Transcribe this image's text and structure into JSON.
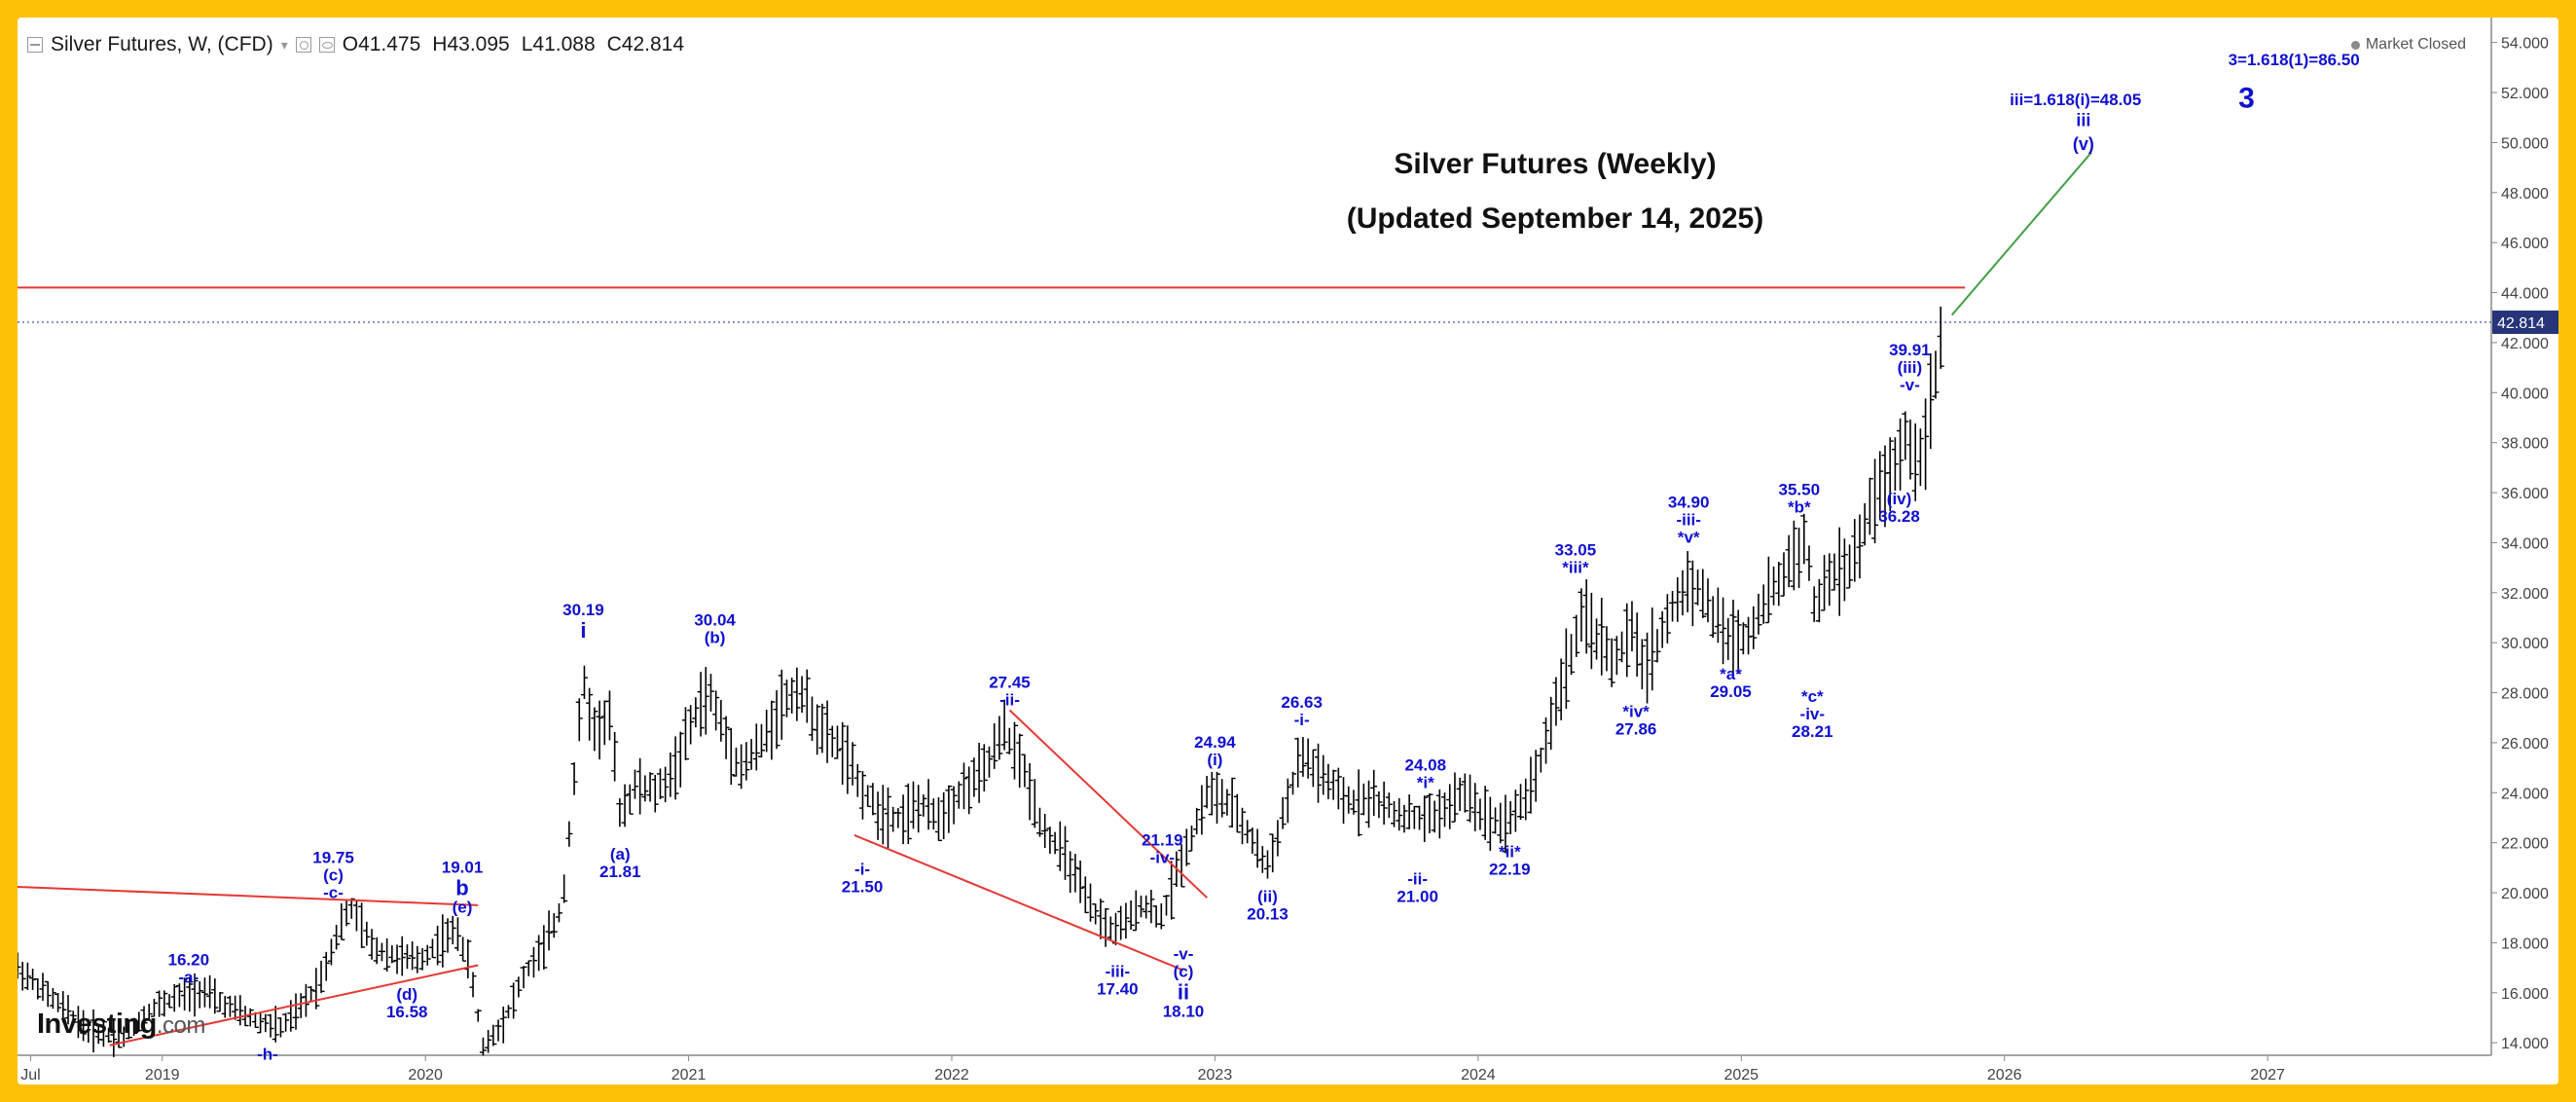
{
  "header": {
    "instrument": "Silver Futures, W, (CFD)",
    "ohlc": [
      {
        "label": "O",
        "value": "41.475"
      },
      {
        "label": "H",
        "value": "43.095"
      },
      {
        "label": "L",
        "value": "41.088"
      },
      {
        "label": "C",
        "value": "42.814"
      }
    ]
  },
  "status": {
    "market": "Market Closed"
  },
  "logo": {
    "text": "Investing",
    "suffix": ".com"
  },
  "colors": {
    "frame": "#ffc107",
    "annotation": "#1010d0",
    "trendline": "#e53935",
    "projection": "#43a047",
    "price_line": "#3f51b5",
    "candles": "#000000"
  },
  "chart_data": {
    "type": "ohlc",
    "title": "Silver Futures (Weekly)",
    "subtitle": "(Updated September 14, 2025)",
    "ylim": [
      13.5,
      55
    ],
    "y_ticks": [
      "14.000",
      "16.000",
      "18.000",
      "20.000",
      "22.000",
      "24.000",
      "26.000",
      "28.000",
      "30.000",
      "32.000",
      "34.000",
      "36.000",
      "38.000",
      "40.000",
      "42.000",
      "44.000",
      "46.000",
      "48.000",
      "50.000",
      "52.000",
      "54.000"
    ],
    "x_ticks": [
      {
        "label": "Jul",
        "t": 2018.5
      },
      {
        "label": "2019",
        "t": 2019.0
      },
      {
        "label": "2020",
        "t": 2020.0
      },
      {
        "label": "2021",
        "t": 2021.0
      },
      {
        "label": "2022",
        "t": 2022.0
      },
      {
        "label": "2023",
        "t": 2023.0
      },
      {
        "label": "2024",
        "t": 2024.0
      },
      {
        "label": "2025",
        "t": 2025.0
      },
      {
        "label": "2026",
        "t": 2026.0
      },
      {
        "label": "2027",
        "t": 2027.0
      }
    ],
    "xlim": [
      2018.45,
      2027.85
    ],
    "current_price": {
      "value": 42.814,
      "label": "42.814"
    },
    "horizontal_line": {
      "value": 44.2
    },
    "price_path": [
      [
        2018.45,
        17.0
      ],
      [
        2018.6,
        15.6
      ],
      [
        2018.72,
        14.5
      ],
      [
        2018.85,
        14.2
      ],
      [
        2018.95,
        15.3
      ],
      [
        2019.05,
        15.8
      ],
      [
        2019.15,
        16.1
      ],
      [
        2019.22,
        15.6
      ],
      [
        2019.35,
        14.9
      ],
      [
        2019.45,
        14.6
      ],
      [
        2019.52,
        15.3
      ],
      [
        2019.6,
        16.5
      ],
      [
        2019.68,
        18.8
      ],
      [
        2019.72,
        19.4
      ],
      [
        2019.8,
        17.8
      ],
      [
        2019.9,
        17.4
      ],
      [
        2019.98,
        17.3
      ],
      [
        2020.05,
        18.0
      ],
      [
        2020.12,
        18.5
      ],
      [
        2020.17,
        17.0
      ],
      [
        2020.22,
        13.8
      ],
      [
        2020.3,
        14.9
      ],
      [
        2020.38,
        16.8
      ],
      [
        2020.45,
        17.8
      ],
      [
        2020.52,
        19.5
      ],
      [
        2020.56,
        24.0
      ],
      [
        2020.6,
        28.5
      ],
      [
        2020.64,
        26.5
      ],
      [
        2020.7,
        27.0
      ],
      [
        2020.74,
        23.2
      ],
      [
        2020.8,
        24.3
      ],
      [
        2020.88,
        24.0
      ],
      [
        2020.95,
        25.0
      ],
      [
        2021.03,
        27.3
      ],
      [
        2021.08,
        28.0
      ],
      [
        2021.15,
        26.0
      ],
      [
        2021.2,
        25.0
      ],
      [
        2021.28,
        26.0
      ],
      [
        2021.35,
        27.5
      ],
      [
        2021.42,
        28.2
      ],
      [
        2021.5,
        26.5
      ],
      [
        2021.58,
        25.8
      ],
      [
        2021.65,
        24.3
      ],
      [
        2021.72,
        23.3
      ],
      [
        2021.8,
        23.0
      ],
      [
        2021.88,
        23.5
      ],
      [
        2021.95,
        23.0
      ],
      [
        2022.03,
        24.0
      ],
      [
        2022.12,
        24.8
      ],
      [
        2022.2,
        26.5
      ],
      [
        2022.27,
        25.0
      ],
      [
        2022.35,
        22.5
      ],
      [
        2022.43,
        21.5
      ],
      [
        2022.52,
        19.5
      ],
      [
        2022.6,
        18.5
      ],
      [
        2022.67,
        18.8
      ],
      [
        2022.72,
        19.6
      ],
      [
        2022.8,
        19.0
      ],
      [
        2022.86,
        21.0
      ],
      [
        2022.92,
        22.5
      ],
      [
        2022.97,
        24.0
      ],
      [
        2023.05,
        23.6
      ],
      [
        2023.12,
        22.5
      ],
      [
        2023.2,
        21.0
      ],
      [
        2023.27,
        23.5
      ],
      [
        2023.33,
        25.5
      ],
      [
        2023.42,
        24.5
      ],
      [
        2023.5,
        23.6
      ],
      [
        2023.6,
        23.8
      ],
      [
        2023.68,
        23.2
      ],
      [
        2023.75,
        23.0
      ],
      [
        2023.82,
        23.0
      ],
      [
        2023.88,
        23.4
      ],
      [
        2023.95,
        24.0
      ],
      [
        2024.03,
        23.0
      ],
      [
        2024.1,
        22.8
      ],
      [
        2024.17,
        23.6
      ],
      [
        2024.23,
        25.0
      ],
      [
        2024.28,
        27.0
      ],
      [
        2024.35,
        29.5
      ],
      [
        2024.4,
        31.0
      ],
      [
        2024.46,
        30.2
      ],
      [
        2024.52,
        29.2
      ],
      [
        2024.58,
        30.5
      ],
      [
        2024.63,
        29.0
      ],
      [
        2024.68,
        30.0
      ],
      [
        2024.73,
        31.2
      ],
      [
        2024.8,
        32.5
      ],
      [
        2024.85,
        32.0
      ],
      [
        2024.9,
        31.0
      ],
      [
        2024.95,
        30.2
      ],
      [
        2025.02,
        30.2
      ],
      [
        2025.08,
        31.5
      ],
      [
        2025.13,
        32.2
      ],
      [
        2025.2,
        33.5
      ],
      [
        2025.25,
        34.0
      ],
      [
        2025.28,
        31.0
      ],
      [
        2025.32,
        32.5
      ],
      [
        2025.4,
        33.0
      ],
      [
        2025.45,
        33.8
      ],
      [
        2025.5,
        35.8
      ],
      [
        2025.56,
        36.5
      ],
      [
        2025.6,
        37.5
      ],
      [
        2025.63,
        38.5
      ],
      [
        2025.66,
        37.0
      ],
      [
        2025.7,
        38.5
      ],
      [
        2025.73,
        40.0
      ],
      [
        2025.76,
        42.2
      ]
    ],
    "wave_labels": [
      {
        "lines": [
          "16.20",
          "-a-"
        ],
        "t": 2019.1,
        "p": 16.2,
        "pos": "above"
      },
      {
        "lines": [
          "-h-"
        ],
        "t": 2019.4,
        "p": 14.3,
        "pos": "below"
      },
      {
        "lines": [
          "19.75",
          "(c)",
          "-c-"
        ],
        "t": 2019.65,
        "p": 19.6,
        "pos": "above"
      },
      {
        "lines": [
          "(d)",
          "16.58"
        ],
        "t": 2019.93,
        "p": 16.7,
        "pos": "below"
      },
      {
        "lines": [
          "19.01",
          "b",
          "(e)"
        ],
        "t": 2020.14,
        "p": 19.0,
        "pos": "above",
        "big": 1
      },
      {
        "lines": [
          "30.19",
          "i"
        ],
        "t": 2020.6,
        "p": 30.0,
        "pos": "above",
        "big": 1
      },
      {
        "lines": [
          "(a)",
          "21.81"
        ],
        "t": 2020.74,
        "p": 22.3,
        "pos": "below"
      },
      {
        "lines": [
          "30.04",
          "(b)"
        ],
        "t": 2021.1,
        "p": 29.8,
        "pos": "above"
      },
      {
        "lines": [
          "-i-",
          "21.50"
        ],
        "t": 2021.66,
        "p": 21.7,
        "pos": "below"
      },
      {
        "lines": [
          "27.45",
          "-ii-"
        ],
        "t": 2022.22,
        "p": 27.3,
        "pos": "above"
      },
      {
        "lines": [
          "-iii-",
          "17.40"
        ],
        "t": 2022.63,
        "p": 17.6,
        "pos": "below"
      },
      {
        "lines": [
          "21.19",
          "-iv-"
        ],
        "t": 2022.8,
        "p": 21.0,
        "pos": "above"
      },
      {
        "lines": [
          "-v-",
          "(c)",
          "ii",
          "18.10"
        ],
        "t": 2022.88,
        "p": 18.3,
        "pos": "below",
        "big": 2
      },
      {
        "lines": [
          "24.94",
          "(i)"
        ],
        "t": 2023.0,
        "p": 24.9,
        "pos": "above"
      },
      {
        "lines": [
          "(ii)",
          "20.13"
        ],
        "t": 2023.2,
        "p": 20.6,
        "pos": "below"
      },
      {
        "lines": [
          "26.63",
          "-i-"
        ],
        "t": 2023.33,
        "p": 26.5,
        "pos": "above"
      },
      {
        "lines": [
          "-ii-",
          "21.00"
        ],
        "t": 2023.77,
        "p": 21.3,
        "pos": "below"
      },
      {
        "lines": [
          "24.08",
          "*i*"
        ],
        "t": 2023.8,
        "p": 24.0,
        "pos": "above"
      },
      {
        "lines": [
          "*ii*",
          "22.19"
        ],
        "t": 2024.12,
        "p": 22.4,
        "pos": "below"
      },
      {
        "lines": [
          "33.05",
          "*iii*"
        ],
        "t": 2024.37,
        "p": 32.6,
        "pos": "above"
      },
      {
        "lines": [
          "*iv*",
          "27.86"
        ],
        "t": 2024.6,
        "p": 28.0,
        "pos": "below"
      },
      {
        "lines": [
          "34.90",
          "-iii-",
          "*v*"
        ],
        "t": 2024.8,
        "p": 33.8,
        "pos": "above"
      },
      {
        "lines": [
          "*a*",
          "29.05"
        ],
        "t": 2024.96,
        "p": 29.5,
        "pos": "below"
      },
      {
        "lines": [
          "35.50",
          "*b*"
        ],
        "t": 2025.22,
        "p": 35.0,
        "pos": "above"
      },
      {
        "lines": [
          "*c*",
          "-iv-",
          "28.21"
        ],
        "t": 2025.27,
        "p": 28.6,
        "pos": "below"
      },
      {
        "lines": [
          "39.91",
          "(iii)",
          "-v-"
        ],
        "t": 2025.64,
        "p": 39.9,
        "pos": "above"
      },
      {
        "lines": [
          "(iv)",
          "36.28"
        ],
        "t": 2025.6,
        "p": 36.5,
        "pos": "below"
      }
    ],
    "targets": [
      {
        "text": "iii=1.618(i)=48.05",
        "t": 2026.27,
        "p": 51.5
      },
      {
        "text": "3=1.618(1)=86.50",
        "t": 2027.1,
        "p": 53.1
      }
    ],
    "target_wave": [
      {
        "text": "iii",
        "t": 2026.3,
        "p": 50.65
      },
      {
        "text": "(v)",
        "t": 2026.3,
        "p": 49.7
      }
    ],
    "big_label": {
      "text": "3",
      "t": 2026.92,
      "p": 51.4
    },
    "trendlines": [
      {
        "from": [
          2018.3,
          20.3
        ],
        "to": [
          2020.2,
          19.5
        ]
      },
      {
        "from": [
          2018.8,
          13.9
        ],
        "to": [
          2020.2,
          17.1
        ]
      },
      {
        "from": [
          2021.63,
          22.3
        ],
        "to": [
          2022.88,
          16.9
        ]
      },
      {
        "from": [
          2022.22,
          27.3
        ],
        "to": [
          2022.97,
          19.8
        ]
      }
    ],
    "projection": {
      "from": [
        2025.8,
        43.1
      ],
      "to": [
        2026.33,
        49.6
      ]
    }
  }
}
